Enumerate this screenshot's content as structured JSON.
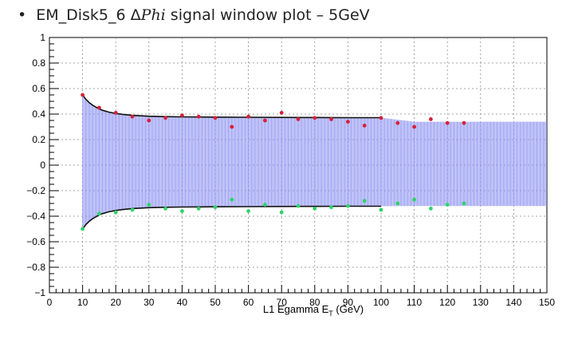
{
  "slide": {
    "bullet": "•",
    "title_prefix": "EM_Disk5_6 Δ",
    "title_italic": "Phi",
    "title_suffix": " signal window plot – 5GeV"
  },
  "chart_data": {
    "type": "scatter",
    "title": "EM_Disk5_6 ΔPhi signal window plot – 5GeV",
    "xlabel_main": "L1 Egamma E",
    "xlabel_sub": "T",
    "xlabel_unit": " (GeV)",
    "ylabel": "",
    "xlim": [
      0,
      150
    ],
    "ylim": [
      -1,
      1
    ],
    "x_ticks": [
      "0",
      "10",
      "20",
      "30",
      "40",
      "50",
      "60",
      "70",
      "80",
      "90",
      "100",
      "110",
      "120",
      "130",
      "140",
      "150"
    ],
    "y_ticks": [
      "−1",
      "−0.8",
      "−0.6",
      "−0.4",
      "−0.2",
      "0",
      "0.2",
      "0.4",
      "0.6",
      "0.8",
      "1"
    ],
    "grid": true,
    "colors": {
      "upper_points": "#d6203a",
      "lower_points": "#2fd36b",
      "band": "#8b8ff0",
      "fit_curve": "#111111"
    },
    "band": {
      "x": [
        10,
        12,
        14,
        16,
        18,
        20,
        25,
        30,
        40,
        50,
        60,
        70,
        80,
        90,
        100,
        110,
        120,
        130,
        140,
        150
      ],
      "upper": [
        0.55,
        0.49,
        0.455,
        0.43,
        0.415,
        0.405,
        0.39,
        0.383,
        0.378,
        0.376,
        0.375,
        0.374,
        0.373,
        0.372,
        0.372,
        0.34,
        0.34,
        0.34,
        0.34,
        0.34
      ],
      "lower": [
        -0.5,
        -0.44,
        -0.405,
        -0.38,
        -0.365,
        -0.355,
        -0.34,
        -0.333,
        -0.328,
        -0.326,
        -0.325,
        -0.324,
        -0.323,
        -0.322,
        -0.322,
        -0.32,
        -0.32,
        -0.32,
        -0.32,
        -0.32
      ]
    },
    "fit_upper": {
      "x": [
        10,
        11,
        12,
        13,
        14,
        15,
        16,
        18,
        20,
        22,
        25,
        30,
        35,
        40,
        50,
        60,
        70,
        80,
        90,
        100
      ],
      "y": [
        0.55,
        0.515,
        0.49,
        0.47,
        0.455,
        0.44,
        0.43,
        0.415,
        0.405,
        0.398,
        0.39,
        0.383,
        0.38,
        0.378,
        0.376,
        0.375,
        0.374,
        0.373,
        0.372,
        0.372
      ]
    },
    "fit_lower": {
      "x": [
        10,
        11,
        12,
        13,
        14,
        15,
        16,
        18,
        20,
        22,
        25,
        30,
        35,
        40,
        50,
        60,
        70,
        80,
        90,
        100
      ],
      "y": [
        -0.5,
        -0.465,
        -0.44,
        -0.42,
        -0.405,
        -0.39,
        -0.38,
        -0.365,
        -0.355,
        -0.348,
        -0.34,
        -0.333,
        -0.33,
        -0.328,
        -0.326,
        -0.325,
        -0.324,
        -0.323,
        -0.322,
        -0.322
      ]
    },
    "series": [
      {
        "name": "upper",
        "x": [
          10,
          15,
          20,
          25,
          30,
          35,
          40,
          45,
          50,
          55,
          60,
          65,
          70,
          75,
          80,
          85,
          90,
          95,
          100,
          105,
          110,
          115,
          120,
          125
        ],
        "y": [
          0.55,
          0.45,
          0.41,
          0.38,
          0.35,
          0.37,
          0.39,
          0.38,
          0.37,
          0.3,
          0.38,
          0.35,
          0.41,
          0.36,
          0.37,
          0.36,
          0.34,
          0.31,
          0.37,
          0.33,
          0.3,
          0.36,
          0.33,
          0.33
        ]
      },
      {
        "name": "lower",
        "x": [
          10,
          15,
          20,
          25,
          30,
          35,
          40,
          45,
          50,
          55,
          60,
          65,
          70,
          75,
          80,
          85,
          90,
          95,
          100,
          105,
          110,
          115,
          120,
          125
        ],
        "y": [
          -0.5,
          -0.38,
          -0.37,
          -0.35,
          -0.31,
          -0.34,
          -0.36,
          -0.34,
          -0.33,
          -0.27,
          -0.36,
          -0.31,
          -0.37,
          -0.32,
          -0.34,
          -0.33,
          -0.32,
          -0.28,
          -0.35,
          -0.3,
          -0.27,
          -0.34,
          -0.31,
          -0.3
        ]
      }
    ]
  }
}
